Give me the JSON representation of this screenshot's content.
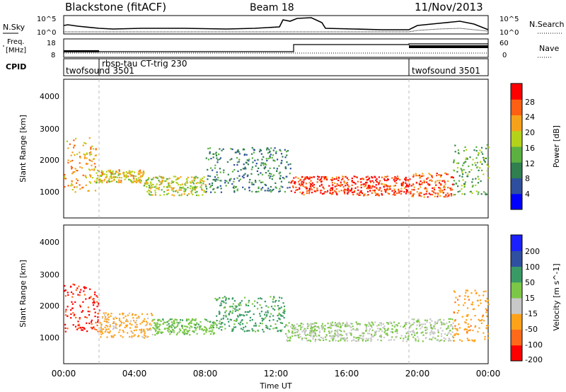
{
  "header": {
    "station": "Blackstone (fitACF)",
    "beam": "Beam 18",
    "date": "11/Nov/2013"
  },
  "top_panels": {
    "nsky_label": "N.Sky",
    "nsearch_label": "N.Search",
    "noise_ticks_left": [
      "10^5",
      "10^0"
    ],
    "noise_ticks_right": [
      "10^5",
      "10^0"
    ],
    "freq_label_1": "Freq.",
    "freq_label_2": "[MHz]",
    "freq_ticks": [
      "18",
      "8"
    ],
    "nave_label": "Nave",
    "nave_ticks": [
      "60",
      "0"
    ],
    "cpid_label": "CPID",
    "cpid_segments": [
      {
        "label": "twofsound 3501"
      },
      {
        "label": "rbsp-tau CT-trig 230"
      },
      {
        "label": "twofsound 3501"
      }
    ]
  },
  "colors": {
    "power_scale": [
      "#0000ff",
      "#2e4f9e",
      "#2f7f4f",
      "#5bb040",
      "#b5d21a",
      "#f5a21a",
      "#ff5f12",
      "#ff0000"
    ],
    "velocity_scale": [
      "#ff0000",
      "#ff6a1a",
      "#ffa21a",
      "#c8c8c8",
      "#7cc846",
      "#3a9a66",
      "#2f4fa0",
      "#1a20ff"
    ]
  },
  "chart_data": [
    {
      "type": "heatmap",
      "panel": "power",
      "ylabel": "Slant Range [km]",
      "xlim_hours": [
        0,
        24
      ],
      "ylim": [
        180,
        4500
      ],
      "yticks": [
        "1000",
        "2000",
        "3000",
        "4000"
      ],
      "colorbar_label": "Power [dB]",
      "colorbar_ticks": [
        "4",
        "8",
        "12",
        "16",
        "20",
        "24",
        "28"
      ],
      "clim": [
        0,
        32
      ],
      "echo_bands_hours_km_db": [
        {
          "t": [
            0.0,
            1.8
          ],
          "r": [
            1000,
            2700
          ],
          "v": 22
        },
        {
          "t": [
            1.8,
            4.5
          ],
          "r": [
            1300,
            1700
          ],
          "v": 20
        },
        {
          "t": [
            4.5,
            8.0
          ],
          "r": [
            900,
            1500
          ],
          "v": 18
        },
        {
          "t": [
            8.0,
            12.8
          ],
          "r": [
            1000,
            2400
          ],
          "v": 10
        },
        {
          "t": [
            12.8,
            19.6
          ],
          "r": [
            900,
            1500
          ],
          "v": 28
        },
        {
          "t": [
            19.6,
            22.0
          ],
          "r": [
            850,
            1600
          ],
          "v": 26
        },
        {
          "t": [
            22.0,
            24.0
          ],
          "r": [
            900,
            2500
          ],
          "v": 14
        }
      ]
    },
    {
      "type": "heatmap",
      "panel": "velocity",
      "ylabel": "Slant Range [km]",
      "xlabel": "Time UT",
      "xticks": [
        "00:00",
        "04:00",
        "08:00",
        "12:00",
        "16:00",
        "20:00",
        "00:00"
      ],
      "xlim_hours": [
        0,
        24
      ],
      "ylim": [
        180,
        4500
      ],
      "yticks": [
        "1000",
        "2000",
        "3000",
        "4000"
      ],
      "colorbar_label": "Velocity [m s^-1]",
      "colorbar_ticks": [
        "200",
        "100",
        "50",
        "15",
        "-15",
        "-50",
        "-100",
        "-200"
      ],
      "clim": [
        -250,
        250
      ],
      "echo_bands_hours_km_ms": [
        {
          "t": [
            0.0,
            2.0
          ],
          "r": [
            1200,
            2700
          ],
          "v": -200
        },
        {
          "t": [
            2.0,
            5.0
          ],
          "r": [
            1000,
            1800
          ],
          "v": -80
        },
        {
          "t": [
            5.0,
            8.5
          ],
          "r": [
            1100,
            1600
          ],
          "v": 40
        },
        {
          "t": [
            8.5,
            12.5
          ],
          "r": [
            1200,
            2300
          ],
          "v": 80
        },
        {
          "t": [
            12.5,
            19.6
          ],
          "r": [
            900,
            1500
          ],
          "v": 0
        },
        {
          "t": [
            19.6,
            22.0
          ],
          "r": [
            900,
            1600
          ],
          "v": -5
        },
        {
          "t": [
            22.0,
            24.0
          ],
          "r": [
            900,
            2500
          ],
          "v": -100
        }
      ]
    }
  ]
}
